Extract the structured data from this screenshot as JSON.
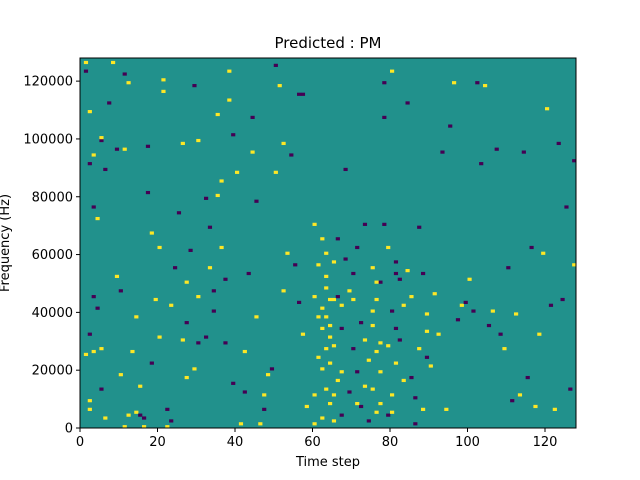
{
  "chart_data": {
    "type": "heatmap",
    "title": "Predicted : PM",
    "xlabel": "Time step",
    "ylabel": "Frequency (Hz)",
    "xlim": [
      0,
      128
    ],
    "ylim": [
      0,
      128000
    ],
    "x_ticks": [
      0,
      20,
      40,
      60,
      80,
      100,
      120
    ],
    "y_ticks": [
      0,
      20000,
      40000,
      60000,
      80000,
      100000,
      120000
    ],
    "x_tick_labels": [
      "0",
      "20",
      "40",
      "60",
      "80",
      "100",
      "120"
    ],
    "y_tick_labels": [
      "0",
      "20000",
      "40000",
      "60000",
      "80000",
      "100000",
      "120000"
    ],
    "n_time_steps": 128,
    "n_freq_bins": 128,
    "freq_bin_width_hz": 1000,
    "value_levels": [
      -1,
      0,
      1
    ],
    "colormap": {
      "-1": "#440154",
      "0": "#21918c",
      "1": "#fde725"
    },
    "background_value": 0,
    "cells": [
      [
        1,
        126,
        1
      ],
      [
        1,
        123,
        -1
      ],
      [
        1,
        25,
        1
      ],
      [
        2,
        109,
        1
      ],
      [
        2,
        91,
        -1
      ],
      [
        2,
        9,
        1
      ],
      [
        2,
        6,
        1
      ],
      [
        3,
        94,
        1
      ],
      [
        3,
        76,
        -1
      ],
      [
        3,
        45,
        -1
      ],
      [
        3,
        26,
        1
      ],
      [
        4,
        41,
        -1
      ],
      [
        4,
        72,
        1
      ],
      [
        5,
        99,
        -1
      ],
      [
        5,
        27,
        1
      ],
      [
        5,
        13,
        -1
      ],
      [
        6,
        89,
        -1
      ],
      [
        6,
        3,
        1
      ],
      [
        8,
        126,
        1
      ],
      [
        9,
        52,
        1
      ],
      [
        9,
        96,
        -1
      ],
      [
        10,
        18,
        1
      ],
      [
        10,
        47,
        -1
      ],
      [
        11,
        0,
        1
      ],
      [
        11,
        96,
        1
      ],
      [
        11,
        122,
        -1
      ],
      [
        12,
        4,
        1
      ],
      [
        13,
        26,
        1
      ],
      [
        14,
        38,
        1
      ],
      [
        14,
        5,
        1
      ],
      [
        15,
        4,
        -1
      ],
      [
        16,
        0,
        1
      ],
      [
        16,
        3,
        -1
      ],
      [
        17,
        97,
        -1
      ],
      [
        17,
        81,
        -1
      ],
      [
        18,
        67,
        1
      ],
      [
        19,
        44,
        1
      ],
      [
        20,
        62,
        1
      ],
      [
        20,
        31,
        1
      ],
      [
        21,
        116,
        1
      ],
      [
        21,
        120,
        1
      ],
      [
        22,
        0,
        1
      ],
      [
        22,
        6,
        -1
      ],
      [
        23,
        2,
        -1
      ],
      [
        24,
        55,
        -1
      ],
      [
        25,
        74,
        -1
      ],
      [
        26,
        98,
        1
      ],
      [
        26,
        30,
        1
      ],
      [
        27,
        36,
        -1
      ],
      [
        27,
        17,
        1
      ],
      [
        28,
        61,
        -1
      ],
      [
        29,
        20,
        1
      ],
      [
        30,
        45,
        1
      ],
      [
        30,
        29,
        -1
      ],
      [
        30,
        99,
        1
      ],
      [
        32,
        31,
        -1
      ],
      [
        32,
        79,
        -1
      ],
      [
        33,
        55,
        1
      ],
      [
        34,
        47,
        -1
      ],
      [
        34,
        40,
        -1
      ],
      [
        35,
        80,
        1
      ],
      [
        35,
        108,
        1
      ],
      [
        36,
        85,
        1
      ],
      [
        36,
        62,
        1
      ],
      [
        37,
        51,
        -1
      ],
      [
        37,
        29,
        -1
      ],
      [
        38,
        113,
        1
      ],
      [
        38,
        123,
        1
      ],
      [
        39,
        101,
        -1
      ],
      [
        40,
        88,
        1
      ],
      [
        41,
        1,
        1
      ],
      [
        42,
        12,
        -1
      ],
      [
        42,
        26,
        1
      ],
      [
        43,
        53,
        -1
      ],
      [
        44,
        107,
        -1
      ],
      [
        44,
        95,
        1
      ],
      [
        45,
        78,
        -1
      ],
      [
        46,
        1,
        1
      ],
      [
        47,
        11,
        1
      ],
      [
        47,
        6,
        -1
      ],
      [
        48,
        18,
        1
      ],
      [
        49,
        20,
        -1
      ],
      [
        50,
        125,
        -1
      ],
      [
        50,
        88,
        1
      ],
      [
        51,
        118,
        1
      ],
      [
        52,
        47,
        1
      ],
      [
        53,
        60,
        1
      ],
      [
        54,
        94,
        -1
      ],
      [
        55,
        56,
        -1
      ],
      [
        56,
        43,
        -1
      ],
      [
        57,
        32,
        1
      ],
      [
        57,
        115,
        -1
      ],
      [
        58,
        7,
        1
      ],
      [
        60,
        45,
        1
      ],
      [
        60,
        11,
        1
      ],
      [
        60,
        1,
        1
      ],
      [
        61,
        56,
        1
      ],
      [
        61,
        24,
        1
      ],
      [
        62,
        65,
        1
      ],
      [
        62,
        41,
        1
      ],
      [
        62,
        34,
        1
      ],
      [
        62,
        20,
        1
      ],
      [
        62,
        3,
        1
      ],
      [
        63,
        52,
        1
      ],
      [
        63,
        48,
        1
      ],
      [
        63,
        38,
        1
      ],
      [
        63,
        27,
        1
      ],
      [
        63,
        13,
        1
      ],
      [
        64,
        44,
        1
      ],
      [
        64,
        35,
        1
      ],
      [
        64,
        22,
        1
      ],
      [
        64,
        8,
        1
      ],
      [
        65,
        57,
        1
      ],
      [
        65,
        44,
        1
      ],
      [
        65,
        28,
        1
      ],
      [
        65,
        11,
        1
      ],
      [
        66,
        65,
        -1
      ],
      [
        66,
        45,
        -1
      ],
      [
        67,
        34,
        -1
      ],
      [
        67,
        19,
        1
      ],
      [
        67,
        4,
        -1
      ],
      [
        68,
        89,
        -1
      ],
      [
        68,
        58,
        -1
      ],
      [
        69,
        12,
        -1
      ],
      [
        70,
        53,
        -1
      ],
      [
        70,
        44,
        1
      ],
      [
        70,
        27,
        -1
      ],
      [
        71,
        62,
        -1
      ],
      [
        71,
        19,
        -1
      ],
      [
        72,
        36,
        -1
      ],
      [
        72,
        7,
        -1
      ],
      [
        73,
        70,
        -1
      ],
      [
        73,
        30,
        1
      ],
      [
        74,
        23,
        1
      ],
      [
        74,
        2,
        -1
      ],
      [
        75,
        55,
        1
      ],
      [
        75,
        35,
        1
      ],
      [
        75,
        13,
        1
      ],
      [
        76,
        44,
        1
      ],
      [
        76,
        26,
        1
      ],
      [
        76,
        5,
        1
      ],
      [
        77,
        50,
        -1
      ],
      [
        77,
        29,
        1
      ],
      [
        77,
        8,
        1
      ],
      [
        78,
        119,
        -1
      ],
      [
        78,
        107,
        -1
      ],
      [
        78,
        70,
        -1
      ],
      [
        79,
        28,
        1
      ],
      [
        79,
        4,
        -1
      ],
      [
        80,
        123,
        1
      ],
      [
        80,
        40,
        -1
      ],
      [
        80,
        11,
        1
      ],
      [
        81,
        57,
        -1
      ],
      [
        81,
        53,
        -1
      ],
      [
        81,
        34,
        -1
      ],
      [
        82,
        51,
        -1
      ],
      [
        82,
        30,
        -1
      ],
      [
        83,
        42,
        1
      ],
      [
        84,
        112,
        -1
      ],
      [
        84,
        54,
        1
      ],
      [
        85,
        17,
        -1
      ],
      [
        86,
        10,
        -1
      ],
      [
        86,
        1,
        -1
      ],
      [
        87,
        69,
        -1
      ],
      [
        88,
        53,
        -1
      ],
      [
        89,
        39,
        1
      ],
      [
        89,
        33,
        1
      ],
      [
        89,
        24,
        -1
      ],
      [
        90,
        21,
        1
      ],
      [
        91,
        46,
        1
      ],
      [
        92,
        32,
        1
      ],
      [
        93,
        95,
        -1
      ],
      [
        94,
        6,
        1
      ],
      [
        95,
        104,
        -1
      ],
      [
        96,
        119,
        1
      ],
      [
        97,
        37,
        -1
      ],
      [
        98,
        42,
        1
      ],
      [
        99,
        43,
        -1
      ],
      [
        100,
        51,
        1
      ],
      [
        101,
        40,
        -1
      ],
      [
        102,
        119,
        -1
      ],
      [
        103,
        91,
        -1
      ],
      [
        104,
        118,
        1
      ],
      [
        105,
        35,
        -1
      ],
      [
        106,
        40,
        1
      ],
      [
        107,
        96,
        -1
      ],
      [
        108,
        32,
        -1
      ],
      [
        109,
        27,
        1
      ],
      [
        110,
        55,
        -1
      ],
      [
        111,
        9,
        -1
      ],
      [
        112,
        39,
        1
      ],
      [
        113,
        11,
        1
      ],
      [
        114,
        95,
        -1
      ],
      [
        115,
        17,
        -1
      ],
      [
        116,
        62,
        -1
      ],
      [
        117,
        7,
        1
      ],
      [
        118,
        32,
        1
      ],
      [
        119,
        60,
        1
      ],
      [
        120,
        110,
        1
      ],
      [
        121,
        42,
        -1
      ],
      [
        122,
        6,
        1
      ],
      [
        123,
        98,
        -1
      ],
      [
        124,
        44,
        -1
      ],
      [
        125,
        76,
        -1
      ],
      [
        126,
        13,
        -1
      ],
      [
        127,
        56,
        1
      ],
      [
        127,
        92,
        -1
      ],
      [
        2,
        32,
        -1
      ],
      [
        5,
        100,
        1
      ],
      [
        7,
        112,
        -1
      ],
      [
        12,
        119,
        1
      ],
      [
        15,
        14,
        1
      ],
      [
        18,
        22,
        -1
      ],
      [
        23,
        42,
        1
      ],
      [
        27,
        50,
        1
      ],
      [
        29,
        118,
        -1
      ],
      [
        33,
        69,
        -1
      ],
      [
        39,
        15,
        -1
      ],
      [
        45,
        38,
        1
      ],
      [
        52,
        98,
        1
      ],
      [
        56,
        115,
        -1
      ],
      [
        60,
        70,
        1
      ],
      [
        61,
        38,
        1
      ],
      [
        63,
        60,
        1
      ],
      [
        64,
        31,
        1
      ],
      [
        65,
        2,
        1
      ],
      [
        66,
        16,
        1
      ],
      [
        67,
        42,
        1
      ],
      [
        69,
        47,
        1
      ],
      [
        71,
        8,
        1
      ],
      [
        73,
        14,
        1
      ],
      [
        75,
        40,
        1
      ],
      [
        76,
        50,
        1
      ],
      [
        77,
        19,
        1
      ],
      [
        79,
        62,
        1
      ],
      [
        80,
        5,
        1
      ],
      [
        81,
        22,
        1
      ],
      [
        83,
        16,
        1
      ],
      [
        85,
        45,
        1
      ],
      [
        87,
        27,
        1
      ],
      [
        88,
        6,
        1
      ]
    ]
  }
}
